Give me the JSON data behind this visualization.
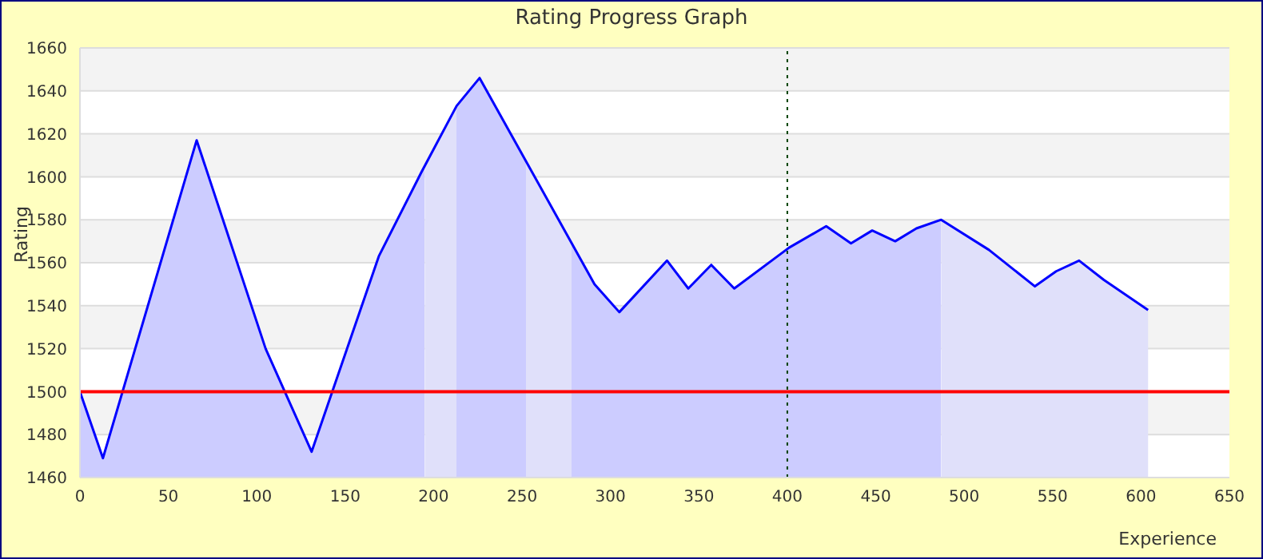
{
  "chart_data": {
    "type": "area",
    "title": "Rating Progress Graph",
    "xlabel": "Experience",
    "ylabel": "Rating",
    "x": [
      0,
      13,
      66,
      105,
      131,
      169,
      193,
      213,
      226,
      291,
      305,
      332,
      344,
      357,
      370,
      401,
      422,
      436,
      448,
      461,
      473,
      487,
      514,
      540,
      552,
      565,
      579,
      604
    ],
    "series": [
      {
        "color": "#0000ff",
        "values": [
          1500,
          1469,
          1617,
          1520,
          1472,
          1563,
          1602,
          1633,
          1646,
          1550,
          1537,
          1561,
          1548,
          1559,
          1548,
          1567,
          1577,
          1569,
          1575,
          1570,
          1576,
          1580,
          1566,
          1549,
          1556,
          1561,
          1552,
          1538
        ]
      }
    ],
    "xlim": [
      0,
      650
    ],
    "xticks": [
      0,
      50,
      100,
      150,
      200,
      250,
      300,
      350,
      400,
      450,
      500,
      550,
      600,
      650
    ],
    "ylim": [
      1460,
      1660
    ],
    "yticks": [
      1460,
      1480,
      1500,
      1520,
      1540,
      1560,
      1580,
      1600,
      1620,
      1640,
      1660
    ],
    "grid": "y",
    "legend": false,
    "marker": "none",
    "line_style": "solid",
    "ref_lines": [
      {
        "axis": "y",
        "value": 1500,
        "color": "#ff0000",
        "line_style": "solid"
      },
      {
        "axis": "x",
        "value": 400,
        "color": "#004000",
        "line_style": "dotted"
      }
    ],
    "bands": [
      {
        "axis": "x",
        "from": 195,
        "to": 213,
        "color": "#e0e0fa"
      },
      {
        "axis": "x",
        "from": 252,
        "to": 278,
        "color": "#e0e0fa"
      },
      {
        "axis": "x",
        "from": 487,
        "to": 650,
        "color": "#e0e0fa"
      }
    ]
  }
}
